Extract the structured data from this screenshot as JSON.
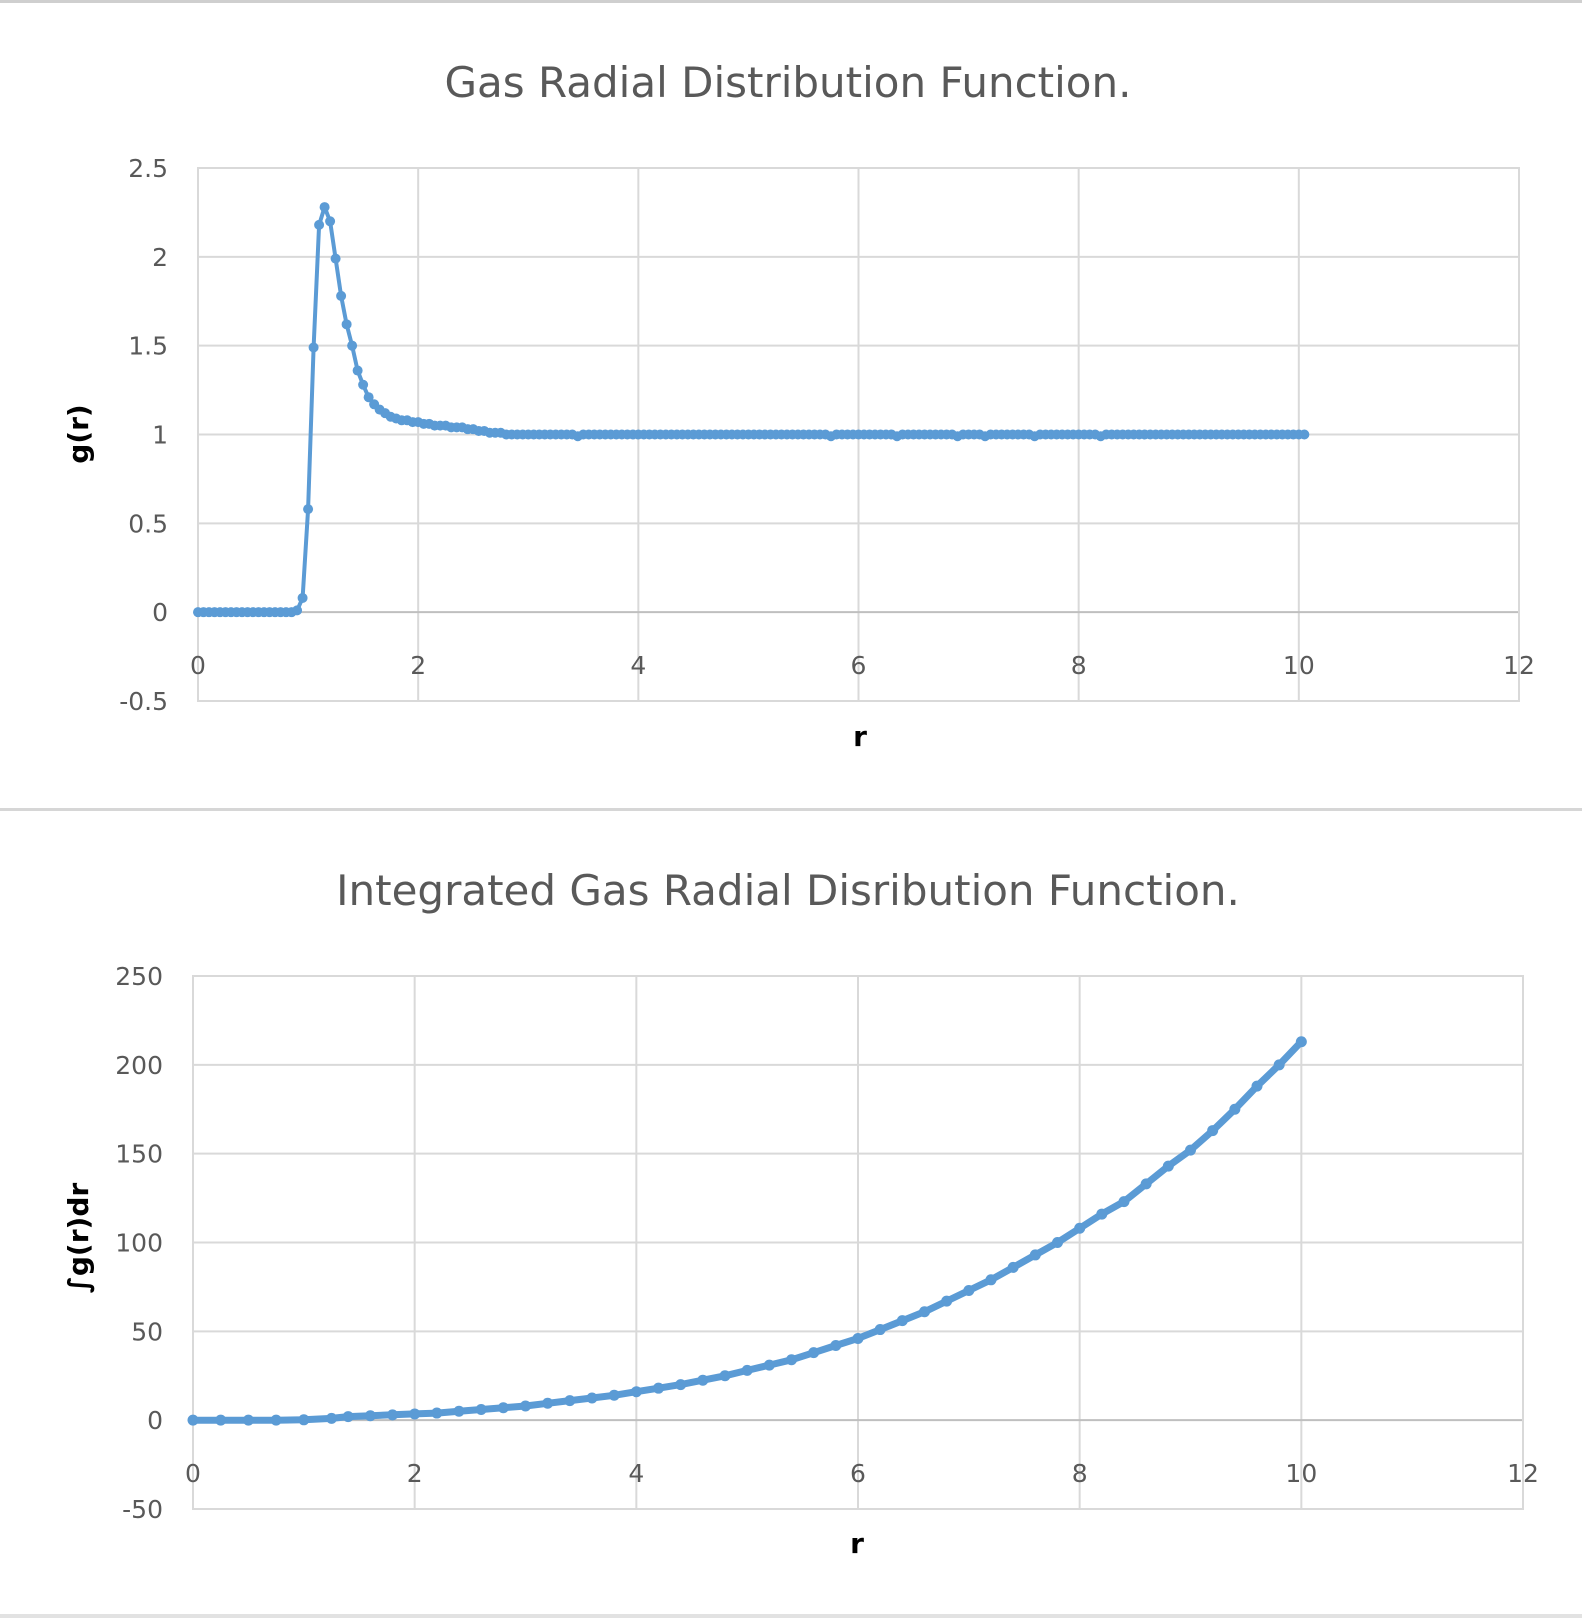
{
  "chart_data": [
    {
      "type": "line",
      "title": "Gas Radial Distribution Function.",
      "xlabel": "r",
      "ylabel": "g(r)",
      "xlim": [
        0,
        12
      ],
      "ylim": [
        -0.5,
        2.5
      ],
      "xticks": [
        "0",
        "2",
        "4",
        "6",
        "8",
        "10",
        "12"
      ],
      "yticks": [
        "-0.5",
        "0",
        "0.5",
        "1",
        "1.5",
        "2",
        "2.5"
      ],
      "xtick_values": [
        0,
        2,
        4,
        6,
        8,
        10,
        12
      ],
      "ytick_values": [
        -0.5,
        0,
        0.5,
        1,
        1.5,
        2,
        2.5
      ],
      "grid": true,
      "color": "#5b9bd5",
      "series": [
        {
          "name": "g(r)",
          "x": [
            0.0,
            0.05,
            0.1,
            0.15,
            0.2,
            0.25,
            0.3,
            0.35,
            0.4,
            0.45,
            0.5,
            0.55,
            0.6,
            0.65,
            0.7,
            0.75,
            0.8,
            0.85,
            0.9,
            0.95,
            1.0,
            1.05,
            1.1,
            1.15,
            1.2,
            1.25,
            1.3,
            1.35,
            1.4,
            1.45,
            1.5,
            1.55,
            1.6,
            1.65,
            1.7,
            1.75,
            1.8,
            1.85,
            1.9,
            1.95,
            2.0,
            2.05,
            2.1,
            2.15,
            2.2,
            2.25,
            2.3,
            2.35,
            2.4,
            2.45,
            2.5,
            2.55,
            2.6,
            2.65,
            2.7,
            2.75,
            2.8,
            2.85,
            2.9,
            2.95,
            3.0,
            3.05,
            3.1,
            3.15,
            3.2,
            3.25,
            3.3,
            3.35,
            3.4,
            3.45,
            3.5,
            3.55,
            3.6,
            3.65,
            3.7,
            3.75,
            3.8,
            3.85,
            3.9,
            3.95,
            4.0,
            4.05,
            4.1,
            4.15,
            4.2,
            4.25,
            4.3,
            4.35,
            4.4,
            4.45,
            4.5,
            4.55,
            4.6,
            4.65,
            4.7,
            4.75,
            4.8,
            4.85,
            4.9,
            4.95,
            5.0,
            5.05,
            5.1,
            5.15,
            5.2,
            5.25,
            5.3,
            5.35,
            5.4,
            5.45,
            5.5,
            5.55,
            5.6,
            5.65,
            5.7,
            5.75,
            5.8,
            5.85,
            5.9,
            5.95,
            6.0,
            6.05,
            6.1,
            6.15,
            6.2,
            6.25,
            6.3,
            6.35,
            6.4,
            6.45,
            6.5,
            6.55,
            6.6,
            6.65,
            6.7,
            6.75,
            6.8,
            6.85,
            6.9,
            6.95,
            7.0,
            7.05,
            7.1,
            7.15,
            7.2,
            7.25,
            7.3,
            7.35,
            7.4,
            7.45,
            7.5,
            7.55,
            7.6,
            7.65,
            7.7,
            7.75,
            7.8,
            7.85,
            7.9,
            7.95,
            8.0,
            8.05,
            8.1,
            8.15,
            8.2,
            8.25,
            8.3,
            8.35,
            8.4,
            8.45,
            8.5,
            8.55,
            8.6,
            8.65,
            8.7,
            8.75,
            8.8,
            8.85,
            8.9,
            8.95,
            9.0,
            9.05,
            9.1,
            9.15,
            9.2,
            9.25,
            9.3,
            9.35,
            9.4,
            9.45,
            9.5,
            9.55,
            9.6,
            9.65,
            9.7,
            9.75,
            9.8,
            9.85,
            9.9,
            9.95,
            10.0,
            10.05
          ],
          "y": [
            0,
            0,
            0,
            0,
            0,
            0,
            0,
            0,
            0,
            0,
            0,
            0,
            0,
            0,
            0,
            0,
            0,
            0,
            0.01,
            0.08,
            0.58,
            1.49,
            2.18,
            2.28,
            2.2,
            1.99,
            1.78,
            1.62,
            1.5,
            1.36,
            1.28,
            1.21,
            1.17,
            1.14,
            1.12,
            1.1,
            1.09,
            1.08,
            1.08,
            1.07,
            1.07,
            1.06,
            1.06,
            1.05,
            1.05,
            1.05,
            1.04,
            1.04,
            1.04,
            1.03,
            1.03,
            1.02,
            1.02,
            1.01,
            1.01,
            1.01,
            1.0,
            1.0,
            1.0,
            1.0,
            1.0,
            1.0,
            1.0,
            1.0,
            1.0,
            1.0,
            1.0,
            1.0,
            1.0,
            0.99,
            1.0,
            1.0,
            1.0,
            1.0,
            1.0,
            1.0,
            1.0,
            1.0,
            1.0,
            1.0,
            1.0,
            1.0,
            1.0,
            1.0,
            1.0,
            1.0,
            1.0,
            1.0,
            1.0,
            1.0,
            1.0,
            1.0,
            1.0,
            1.0,
            1.0,
            1.0,
            1.0,
            1.0,
            1.0,
            1.0,
            1.0,
            1.0,
            1.0,
            1.0,
            1.0,
            1.0,
            1.0,
            1.0,
            1.0,
            1.0,
            1.0,
            1.0,
            1.0,
            1.0,
            1.0,
            0.99,
            1.0,
            1.0,
            1.0,
            1.0,
            1.0,
            1.0,
            1.0,
            1.0,
            1.0,
            1.0,
            1.0,
            0.99,
            1.0,
            1.0,
            1.0,
            1.0,
            1.0,
            1.0,
            1.0,
            1.0,
            1.0,
            1.0,
            0.99,
            1.0,
            1.0,
            1.0,
            1.0,
            0.99,
            1.0,
            1.0,
            1.0,
            1.0,
            1.0,
            1.0,
            1.0,
            1.0,
            0.99,
            1.0,
            1.0,
            1.0,
            1.0,
            1.0,
            1.0,
            1.0,
            1.0,
            1.0,
            1.0,
            1.0,
            0.99,
            1.0,
            1.0,
            1.0,
            1.0,
            1.0,
            1.0,
            1.0,
            1.0,
            1.0,
            1.0,
            1.0,
            1.0,
            1.0,
            1.0,
            1.0,
            1.0,
            1.0,
            1.0,
            1.0,
            1.0,
            1.0,
            1.0,
            1.0,
            1.0,
            1.0,
            1.0,
            1.0,
            1.0,
            1.0,
            1.0,
            1.0,
            1.0,
            1.0,
            1.0,
            1.0,
            1.0,
            1.0
          ]
        }
      ]
    },
    {
      "type": "line",
      "title": "Integrated Gas Radial Disribution Function.",
      "xlabel": "r",
      "ylabel": "∫g(r)dr",
      "xlim": [
        0,
        12
      ],
      "ylim": [
        -50,
        250
      ],
      "xticks": [
        "0",
        "2",
        "4",
        "6",
        "8",
        "10",
        "12"
      ],
      "yticks": [
        "-50",
        "0",
        "50",
        "100",
        "150",
        "200",
        "250"
      ],
      "xtick_values": [
        0,
        2,
        4,
        6,
        8,
        10,
        12
      ],
      "ytick_values": [
        -50,
        0,
        50,
        100,
        150,
        200,
        250
      ],
      "grid": true,
      "color": "#5b9bd5",
      "series": [
        {
          "name": "∫g(r)dr",
          "x": [
            0.0,
            0.25,
            0.5,
            0.75,
            1.0,
            1.25,
            1.4,
            1.6,
            1.8,
            2.0,
            2.2,
            2.4,
            2.6,
            2.8,
            3.0,
            3.2,
            3.4,
            3.6,
            3.8,
            4.0,
            4.2,
            4.4,
            4.6,
            4.8,
            5.0,
            5.2,
            5.4,
            5.6,
            5.8,
            6.0,
            6.2,
            6.4,
            6.6,
            6.8,
            7.0,
            7.2,
            7.4,
            7.6,
            7.8,
            8.0,
            8.2,
            8.4,
            8.6,
            8.8,
            9.0,
            9.2,
            9.4,
            9.6,
            9.8,
            10.0
          ],
          "y": [
            0,
            0,
            0,
            0,
            0.2,
            1,
            2,
            2.5,
            3,
            3.5,
            4,
            5,
            6,
            7,
            8,
            9.5,
            11,
            12.5,
            14,
            16,
            18,
            20,
            22.5,
            25,
            28,
            31,
            34,
            38,
            42,
            46,
            51,
            56,
            61,
            67,
            73,
            79,
            86,
            93,
            100,
            108,
            116,
            123,
            133,
            143,
            152,
            163,
            175,
            188,
            200,
            213
          ]
        }
      ]
    }
  ]
}
